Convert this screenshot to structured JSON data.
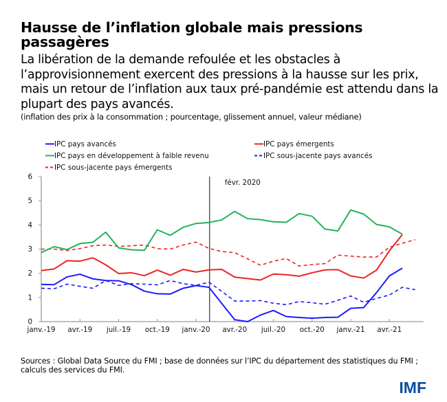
{
  "title": "Hausse de l’inflation globale mais pressions passagères",
  "subtitle": "La libération de la demande refoulée et les obstacles à l’approvisionnement exercent des pressions à la hausse sur les prix, mais un retour de l’inflation aux taux pré-pandémie est attendu dans la plupart des pays avancés.",
  "note": "(inflation des prix à la consommation ; pourcentage, glissement annuel, valeur médiane)",
  "sources": "Sources : Global Data Source du FMI ; base de données sur l’IPC du département des statistiques du FMI ; calculs des services du FMI.",
  "logo": "IMF",
  "chart_data": {
    "type": "line",
    "title": "",
    "xlabel": "",
    "ylabel": "",
    "ylim": [
      0,
      6
    ],
    "yticks": [
      "0",
      "1",
      "2",
      "3",
      "4",
      "5",
      "6"
    ],
    "x": [
      "janv.-19",
      "févr.-19",
      "mars-19",
      "avr.-19",
      "mai-19",
      "juin-19",
      "juil.-19",
      "août-19",
      "sept.-19",
      "oct.-19",
      "nov.-19",
      "déc.-19",
      "janv.-20",
      "févr.-20",
      "mars-20",
      "avr.-20",
      "mai-20",
      "juin-20",
      "juil.-20",
      "août-20",
      "sept.-20",
      "oct.-20",
      "nov.-20",
      "déc.-20",
      "janv.-21",
      "févr.-21",
      "mars-21",
      "avr.-21",
      "mai-21",
      "juin-21"
    ],
    "xtick_labels": [
      "janv.-19",
      "avr.-19",
      "juil.-19",
      "oct.-19",
      "janv.-20",
      "avr.-20",
      "juil.-20",
      "oct.-20",
      "janv.-21",
      "avr.-21"
    ],
    "xtick_indices": [
      0,
      3,
      6,
      9,
      12,
      15,
      18,
      21,
      24,
      27
    ],
    "grid": false,
    "legend_position": "top",
    "annotation": {
      "label": "févr. 2020",
      "x_index": 13
    },
    "series": [
      {
        "name": "IPC pays avancés",
        "color": "#1a1aff",
        "dash": false,
        "values": [
          1.54,
          1.53,
          1.85,
          1.96,
          1.77,
          1.7,
          1.69,
          1.53,
          1.26,
          1.15,
          1.14,
          1.38,
          1.49,
          1.42,
          0.75,
          0.08,
          0.0,
          0.27,
          0.46,
          0.21,
          0.17,
          0.14,
          0.17,
          0.18,
          0.55,
          0.58,
          1.2,
          1.89,
          2.21,
          null
        ]
      },
      {
        "name": "IPC pays émergents",
        "color": "#ee2222",
        "dash": false,
        "values": [
          2.11,
          2.18,
          2.52,
          2.5,
          2.64,
          2.35,
          1.99,
          2.02,
          1.9,
          2.13,
          1.92,
          2.16,
          2.05,
          2.14,
          2.16,
          1.84,
          1.78,
          1.72,
          1.97,
          1.94,
          1.88,
          2.02,
          2.14,
          2.15,
          1.89,
          1.8,
          2.13,
          2.93,
          3.6,
          null
        ]
      },
      {
        "name": "IPC pays en développement à faible revenu",
        "color": "#1fb35a",
        "dash": false,
        "values": [
          2.86,
          3.1,
          2.98,
          3.23,
          3.28,
          3.7,
          3.05,
          2.97,
          2.95,
          3.8,
          3.57,
          3.9,
          4.06,
          4.1,
          4.21,
          4.56,
          4.26,
          4.22,
          4.13,
          4.11,
          4.47,
          4.36,
          3.83,
          3.75,
          4.62,
          4.45,
          4.02,
          3.92,
          3.62,
          null
        ]
      },
      {
        "name": "IPC sous-jacente pays avancés",
        "color": "#1a1aff",
        "dash": true,
        "values": [
          1.38,
          1.36,
          1.55,
          1.46,
          1.38,
          1.7,
          1.5,
          1.57,
          1.55,
          1.52,
          1.7,
          1.57,
          1.5,
          1.63,
          1.25,
          0.85,
          0.85,
          0.87,
          0.76,
          0.7,
          0.83,
          0.78,
          0.72,
          0.88,
          1.06,
          0.8,
          0.96,
          1.1,
          1.42,
          1.32
        ]
      },
      {
        "name": "IPC sous-jacente pays émergents",
        "color": "#ee2222",
        "dash": true,
        "values": [
          3.0,
          3.0,
          2.94,
          3.02,
          3.14,
          3.17,
          3.11,
          3.14,
          3.17,
          3.02,
          3.0,
          3.17,
          3.29,
          3.03,
          2.9,
          2.85,
          2.6,
          2.33,
          2.5,
          2.61,
          2.3,
          2.36,
          2.4,
          2.75,
          2.71,
          2.67,
          2.67,
          3.08,
          3.24,
          3.39
        ]
      }
    ],
    "legend": [
      {
        "label": "IPC pays avancés",
        "series_index": 0
      },
      {
        "label": "IPC pays émergents",
        "series_index": 1
      },
      {
        "label": "IPC pays en développement à faible revenu",
        "series_index": 2
      },
      {
        "label": "IPC sous-jacente pays avancés",
        "series_index": 3
      },
      {
        "label": "IPC sous-jacente pays émergents",
        "series_index": 4
      }
    ]
  }
}
